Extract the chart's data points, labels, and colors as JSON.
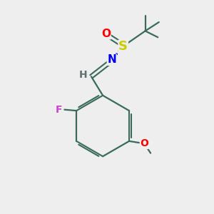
{
  "background_color": "#eeeeee",
  "bond_color": "#3a6b5a",
  "atom_colors": {
    "O": "#ff0000",
    "S": "#cccc00",
    "N": "#0000ee",
    "F": "#cc44cc",
    "H_label": "#607070"
  },
  "figsize": [
    3.0,
    3.0
  ],
  "dpi": 100
}
